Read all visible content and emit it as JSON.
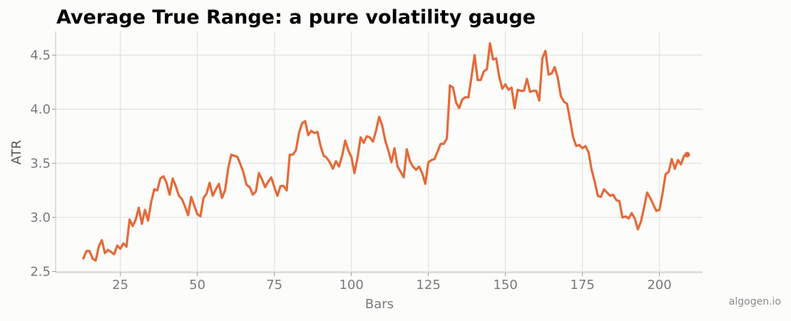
{
  "chart_data": {
    "type": "line",
    "title": "Average True Range: a pure volatility gauge",
    "xlabel": "Bars",
    "ylabel": "ATR",
    "xlim": [
      4,
      214
    ],
    "ylim": [
      2.49,
      4.72
    ],
    "xticks": [
      25,
      50,
      75,
      100,
      125,
      150,
      175,
      200
    ],
    "yticks": [
      2.5,
      3.0,
      3.5,
      4.0,
      4.5
    ],
    "ytick_labels": [
      "2.5",
      "3.0",
      "3.5",
      "4.0",
      "4.5"
    ],
    "grid": true,
    "line_color": "#e46a3a",
    "series": [
      {
        "x": [
          13,
          14,
          15,
          16,
          17,
          18,
          19,
          20,
          21,
          22,
          23,
          24,
          25,
          26,
          27,
          28,
          29,
          30,
          31,
          32,
          33,
          34,
          35,
          36,
          37,
          38,
          39,
          40,
          41,
          42,
          43,
          44,
          45,
          46,
          47,
          48,
          49,
          50,
          51,
          52,
          53,
          54,
          55,
          56,
          57,
          58,
          59,
          60,
          61,
          62,
          63,
          64,
          65,
          66,
          67,
          68,
          69,
          70,
          71,
          72,
          73,
          74,
          75,
          76,
          77,
          78,
          79,
          80,
          81,
          82,
          83,
          84,
          85,
          86,
          87,
          88,
          89,
          90,
          91,
          92,
          93,
          94,
          95,
          96,
          97,
          98,
          99,
          100,
          101,
          102,
          103,
          104,
          105,
          106,
          107,
          108,
          109,
          110,
          111,
          112,
          113,
          114,
          115,
          116,
          117,
          118,
          119,
          120,
          121,
          122,
          123,
          124,
          125,
          126,
          127,
          128,
          129,
          130,
          131,
          132,
          133,
          134,
          135,
          136,
          137,
          138,
          139,
          140,
          141,
          142,
          143,
          144,
          145,
          146,
          147,
          148,
          149,
          150,
          151,
          152,
          153,
          154,
          155,
          156,
          157,
          158,
          159,
          160,
          161,
          162,
          163,
          164,
          165,
          166,
          167,
          168,
          169,
          170,
          171,
          172,
          173,
          174,
          175,
          176,
          177,
          178,
          179,
          180,
          181,
          182,
          183,
          184,
          185,
          186,
          187,
          188,
          189,
          190,
          191,
          192,
          193,
          194,
          195,
          196,
          197,
          198,
          199,
          200,
          201,
          202,
          203,
          204,
          205,
          206,
          207,
          208
        ],
        "y": [
          2.62,
          2.69,
          2.69,
          2.62,
          2.6,
          2.73,
          2.79,
          2.67,
          2.7,
          2.68,
          2.66,
          2.74,
          2.71,
          2.76,
          2.73,
          2.98,
          2.92,
          2.98,
          3.09,
          2.94,
          3.07,
          2.97,
          3.14,
          3.26,
          3.25,
          3.36,
          3.38,
          3.32,
          3.21,
          3.36,
          3.29,
          3.2,
          3.17,
          3.1,
          3.02,
          3.19,
          3.11,
          3.03,
          3.01,
          3.18,
          3.22,
          3.32,
          3.2,
          3.26,
          3.31,
          3.18,
          3.25,
          3.45,
          3.58,
          3.57,
          3.56,
          3.49,
          3.41,
          3.3,
          3.28,
          3.21,
          3.24,
          3.41,
          3.35,
          3.28,
          3.33,
          3.37,
          3.28,
          3.2,
          3.29,
          3.29,
          3.25,
          3.58,
          3.58,
          3.62,
          3.78,
          3.87,
          3.89,
          3.76,
          3.8,
          3.78,
          3.79,
          3.66,
          3.57,
          3.55,
          3.51,
          3.45,
          3.52,
          3.47,
          3.57,
          3.71,
          3.62,
          3.56,
          3.41,
          3.55,
          3.74,
          3.69,
          3.75,
          3.74,
          3.7,
          3.8,
          3.93,
          3.85,
          3.71,
          3.62,
          3.51,
          3.64,
          3.47,
          3.42,
          3.37,
          3.63,
          3.52,
          3.47,
          3.44,
          3.47,
          3.41,
          3.31,
          3.51,
          3.53,
          3.54,
          3.61,
          3.68,
          3.68,
          3.73,
          4.22,
          4.2,
          4.06,
          4.01,
          4.09,
          4.11,
          4.11,
          4.3,
          4.5,
          4.27,
          4.27,
          4.35,
          4.37,
          4.61,
          4.46,
          4.47,
          4.3,
          4.19,
          4.23,
          4.18,
          4.2,
          4.01,
          4.18,
          4.17,
          4.17,
          4.28,
          4.16,
          4.17,
          4.17,
          4.08,
          4.47,
          4.54,
          4.32,
          4.33,
          4.39,
          4.29,
          4.12,
          4.07,
          4.05,
          3.9,
          3.74,
          3.66,
          3.67,
          3.64,
          3.66,
          3.6,
          3.44,
          3.33,
          3.2,
          3.19,
          3.26,
          3.23,
          3.2,
          3.21,
          3.16,
          3.15,
          3.0,
          3.01,
          2.99,
          3.04,
          2.99,
          2.89,
          2.96,
          3.09,
          3.23,
          3.18,
          3.12,
          3.06,
          3.07,
          3.22,
          3.4,
          3.42,
          3.54,
          3.45,
          3.53,
          3.49,
          3.57
        ]
      }
    ],
    "end_marker": {
      "x": 209,
      "y": 3.58
    },
    "watermark": "algogen.io"
  }
}
